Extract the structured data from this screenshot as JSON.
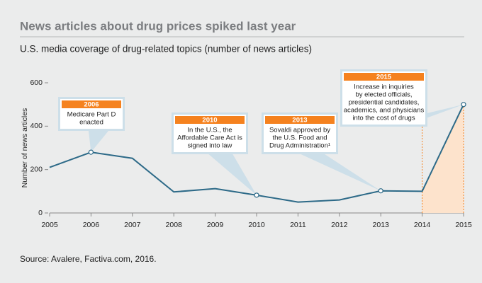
{
  "chart_data": {
    "type": "line",
    "title": "News articles about drug prices spiked last year",
    "subtitle": "U.S. media coverage of drug-related topics (number of news articles)",
    "y_label": "Number of news articles",
    "source": "Source: Avalere, Factiva.com, 2016.",
    "x": [
      2005,
      2006,
      2007,
      2008,
      2009,
      2010,
      2011,
      2012,
      2013,
      2014,
      2015
    ],
    "series": [
      {
        "name": "News articles",
        "color": "#2d6a88",
        "values": [
          210,
          280,
          252,
          97,
          112,
          82,
          50,
          60,
          102,
          100,
          500
        ]
      }
    ],
    "xlim": [
      2005,
      2015
    ],
    "xticks": [
      2005,
      2006,
      2007,
      2008,
      2009,
      2010,
      2011,
      2012,
      2013,
      2014,
      2015
    ],
    "ylim": [
      0,
      600
    ],
    "yticks": [
      0,
      200,
      400,
      600
    ],
    "annotation_color": "#f5821f",
    "shade_color": "#fde3cc",
    "annotations": [
      {
        "label": "2006",
        "lines": [
          "Medicare Part D",
          "enacted"
        ]
      },
      {
        "label": "2010",
        "lines": [
          "In the U.S., the",
          "Affordable Care Act is",
          "signed into law"
        ]
      },
      {
        "label": "2013",
        "lines": [
          "Sovaldi approved by",
          "the U.S. Food and",
          "Drug Administration¹"
        ]
      },
      {
        "label": "2015",
        "lines": [
          "Increase in inquiries",
          "by elected officials,",
          "presidential candidates,",
          "academics, and physicians",
          "into the cost of drugs"
        ]
      }
    ]
  }
}
